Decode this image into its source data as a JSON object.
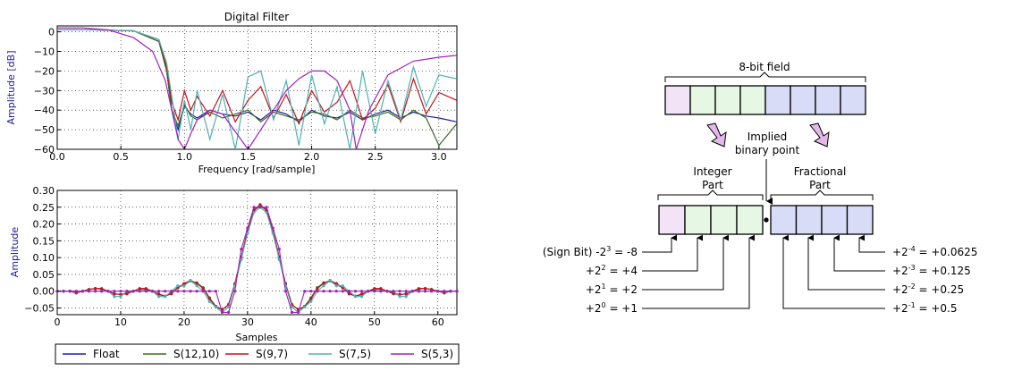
{
  "chart_data": [
    {
      "type": "line",
      "title": "Digital Filter",
      "xlabel": "Frequency [rad/sample]",
      "ylabel": "Amplitude [dB]",
      "xlim": [
        0,
        3.14159
      ],
      "ylim": [
        -60,
        3
      ],
      "xticks": [
        "0.0",
        "0.5",
        "1.0",
        "1.5",
        "2.0",
        "2.5",
        "3.0"
      ],
      "yticks": [
        "0",
        "−10",
        "−20",
        "−30",
        "−40",
        "−50",
        "−60"
      ],
      "grid": true,
      "series": [
        {
          "name": "Float",
          "color": "#1f1fa0",
          "x": [
            0,
            0.3,
            0.6,
            0.8,
            0.86,
            0.9,
            0.95,
            1.0,
            1.05,
            1.1,
            1.2,
            1.3,
            1.4,
            1.5,
            1.6,
            1.7,
            1.8,
            1.9,
            2.0,
            2.1,
            2.2,
            2.3,
            2.4,
            2.5,
            2.6,
            2.7,
            2.8,
            2.9,
            3.0,
            3.14
          ],
          "y": [
            1,
            1,
            0.5,
            -5,
            -20,
            -40,
            -50,
            -38,
            -42,
            -44,
            -40,
            -42,
            -43,
            -41,
            -45,
            -40,
            -42,
            -46,
            -40,
            -43,
            -44,
            -41,
            -45,
            -42,
            -40,
            -44,
            -41,
            -43,
            -44,
            -46
          ]
        },
        {
          "name": "S(12,10)",
          "color": "#3a6e1a",
          "x": [
            0,
            0.3,
            0.6,
            0.8,
            0.86,
            0.9,
            0.95,
            1.0,
            1.05,
            1.1,
            1.2,
            1.3,
            1.4,
            1.5,
            1.6,
            1.7,
            1.8,
            1.9,
            2.0,
            2.1,
            2.2,
            2.3,
            2.4,
            2.5,
            2.6,
            2.7,
            2.8,
            2.9,
            3.0,
            3.14
          ],
          "y": [
            1,
            1,
            0.5,
            -5,
            -20,
            -40,
            -48,
            -37,
            -43,
            -45,
            -41,
            -44,
            -42,
            -40,
            -46,
            -41,
            -43,
            -45,
            -41,
            -42,
            -45,
            -40,
            -44,
            -43,
            -41,
            -45,
            -40,
            -44,
            -58,
            -47
          ]
        },
        {
          "name": "S(9,7)",
          "color": "#c0141a",
          "x": [
            0,
            0.3,
            0.6,
            0.8,
            0.86,
            0.9,
            0.95,
            1.0,
            1.05,
            1.1,
            1.2,
            1.3,
            1.4,
            1.5,
            1.6,
            1.7,
            1.8,
            1.9,
            2.0,
            2.1,
            2.2,
            2.3,
            2.4,
            2.5,
            2.6,
            2.7,
            2.8,
            2.9,
            3.0,
            3.14
          ],
          "y": [
            1,
            1,
            0.5,
            -4,
            -18,
            -36,
            -45,
            -30,
            -40,
            -33,
            -43,
            -30,
            -46,
            -35,
            -28,
            -44,
            -32,
            -47,
            -30,
            -41,
            -36,
            -25,
            -45,
            -39,
            -27,
            -46,
            -24,
            -42,
            -31,
            -35
          ]
        },
        {
          "name": "S(7,5)",
          "color": "#4fb0b5",
          "x": [
            0,
            0.3,
            0.6,
            0.8,
            0.86,
            0.9,
            0.95,
            1.0,
            1.05,
            1.1,
            1.2,
            1.3,
            1.4,
            1.5,
            1.6,
            1.7,
            1.8,
            1.9,
            2.0,
            2.1,
            2.2,
            2.3,
            2.4,
            2.5,
            2.6,
            2.7,
            2.8,
            2.9,
            3.0,
            3.14
          ],
          "y": [
            1,
            1,
            0.5,
            -4,
            -16,
            -33,
            -55,
            -35,
            -50,
            -30,
            -55,
            -32,
            -60,
            -23,
            -20,
            -45,
            -25,
            -58,
            -22,
            -47,
            -28,
            -60,
            -20,
            -52,
            -25,
            -45,
            -18,
            -38,
            -22,
            -24
          ]
        },
        {
          "name": "S(5,3)",
          "color": "#a020c0",
          "x": [
            0,
            0.2,
            0.4,
            0.6,
            0.75,
            0.85,
            0.9,
            0.95,
            1.0,
            1.05,
            1.1,
            1.2,
            1.3,
            1.5,
            1.7,
            1.8,
            1.9,
            2.0,
            2.1,
            2.2,
            2.3,
            2.35,
            2.45,
            2.6,
            2.8,
            3.0,
            3.14
          ],
          "y": [
            2,
            2,
            1,
            -3,
            -10,
            -25,
            -40,
            -55,
            -60,
            -52,
            -45,
            -40,
            -42,
            -60,
            -40,
            -30,
            -24,
            -20,
            -20,
            -25,
            -40,
            -60,
            -40,
            -22,
            -15,
            -13,
            -12
          ]
        }
      ]
    },
    {
      "type": "line",
      "title": "",
      "xlabel": "Samples",
      "ylabel": "Amplitude",
      "xlim": [
        0,
        63
      ],
      "ylim": [
        -0.07,
        0.3
      ],
      "xticks": [
        "0",
        "10",
        "20",
        "30",
        "40",
        "50",
        "60"
      ],
      "yticks": [
        "0.30",
        "0.25",
        "0.20",
        "0.15",
        "0.10",
        "0.05",
        "0.00",
        "−0.05"
      ],
      "grid": true,
      "legend_position": "bottom",
      "legend": [
        "Float",
        "S(12,10)",
        "S(9,7)",
        "S(7,5)",
        "S(5,3)"
      ],
      "series": [
        {
          "name": "Float",
          "color": "#1f1fa0",
          "values": [
            0,
            0,
            0,
            -0.005,
            0,
            0.005,
            0.008,
            0.006,
            0,
            -0.008,
            -0.01,
            -0.005,
            0,
            0.006,
            0.005,
            0,
            -0.01,
            -0.015,
            -0.005,
            0.01,
            0.02,
            0.03,
            0.025,
            0.01,
            -0.02,
            -0.045,
            -0.055,
            -0.04,
            0.02,
            0.1,
            0.18,
            0.24,
            0.255,
            0.24,
            0.18,
            0.1,
            0.02,
            -0.04,
            -0.055,
            -0.045,
            -0.02,
            0.01,
            0.025,
            0.03,
            0.02,
            0.01,
            -0.005,
            -0.015,
            -0.01,
            0,
            0.005,
            0.006,
            0,
            -0.005,
            -0.01,
            -0.008,
            0,
            0.006,
            0.008,
            0.005,
            0,
            -0.005,
            0,
            0
          ]
        },
        {
          "name": "S(12,10)",
          "color": "#3a6e1a",
          "values": [
            0,
            0,
            0,
            -0.005,
            0,
            0.005,
            0.008,
            0.006,
            0,
            -0.008,
            -0.01,
            -0.005,
            0,
            0.006,
            0.005,
            0,
            -0.01,
            -0.015,
            -0.005,
            0.01,
            0.02,
            0.03,
            0.025,
            0.01,
            -0.02,
            -0.045,
            -0.055,
            -0.04,
            0.02,
            0.1,
            0.18,
            0.24,
            0.255,
            0.24,
            0.18,
            0.1,
            0.02,
            -0.04,
            -0.055,
            -0.045,
            -0.02,
            0.01,
            0.025,
            0.03,
            0.02,
            0.01,
            -0.005,
            -0.015,
            -0.01,
            0,
            0.005,
            0.006,
            0,
            -0.005,
            -0.01,
            -0.008,
            0,
            0.006,
            0.008,
            0.005,
            0,
            -0.005,
            0,
            0
          ]
        },
        {
          "name": "S(9,7)",
          "color": "#c0141a",
          "values": [
            0,
            0,
            0,
            -0.005,
            0,
            0.005,
            0.008,
            0.008,
            0,
            -0.008,
            -0.01,
            -0.008,
            0,
            0.008,
            0.008,
            0,
            -0.008,
            -0.015,
            -0.008,
            0.01,
            0.023,
            0.032,
            0.023,
            0.008,
            -0.023,
            -0.047,
            -0.055,
            -0.04,
            0.023,
            0.102,
            0.18,
            0.242,
            0.258,
            0.242,
            0.18,
            0.102,
            0.023,
            -0.04,
            -0.055,
            -0.047,
            -0.023,
            0.008,
            0.023,
            0.032,
            0.023,
            0.01,
            -0.008,
            -0.015,
            -0.008,
            0,
            0.008,
            0.008,
            0,
            -0.008,
            -0.01,
            -0.008,
            0,
            0.008,
            0.008,
            0.005,
            0,
            -0.005,
            0,
            0
          ]
        },
        {
          "name": "S(7,5)",
          "color": "#4fb0b5",
          "values": [
            0,
            0,
            0,
            0,
            0,
            0,
            0,
            0,
            0,
            -0.016,
            -0.016,
            0,
            0,
            0,
            0,
            0,
            -0.016,
            -0.016,
            0,
            0.016,
            0.016,
            0.031,
            0.016,
            0,
            -0.031,
            -0.047,
            -0.063,
            -0.047,
            0.016,
            0.094,
            0.172,
            0.234,
            0.25,
            0.234,
            0.172,
            0.094,
            0.016,
            -0.047,
            -0.063,
            -0.047,
            -0.031,
            0,
            0.016,
            0.031,
            0.016,
            0.016,
            0,
            -0.016,
            -0.016,
            0,
            0,
            0,
            0,
            0,
            -0.016,
            -0.016,
            0,
            0,
            0,
            0,
            0,
            0,
            0,
            0
          ]
        },
        {
          "name": "S(5,3)",
          "color": "#a020c0",
          "values": [
            0,
            0,
            0,
            0,
            0,
            0,
            0,
            0,
            0,
            0,
            0,
            0,
            0,
            0,
            0,
            0,
            0,
            0,
            0,
            0,
            0,
            0,
            0,
            0,
            0,
            0,
            -0.063,
            -0.063,
            0,
            0.125,
            0.188,
            0.25,
            0.25,
            0.25,
            0.188,
            0.125,
            0,
            -0.063,
            -0.063,
            0,
            0,
            0,
            0,
            0,
            0,
            0,
            0,
            0,
            0,
            0,
            0,
            0,
            0,
            0,
            0,
            0,
            0,
            0,
            0,
            0,
            0,
            0,
            0,
            0
          ]
        }
      ]
    }
  ],
  "diagram": {
    "field_label": "8-bit field",
    "implied_label_1": "Implied",
    "implied_label_2": "binary point",
    "integer_label_1": "Integer",
    "integer_label_2": "Part",
    "fraction_label_1": "Fractional",
    "fraction_label_2": "Part",
    "colors": {
      "sign": "#f3e3f6",
      "integer": "#e6f7e3",
      "fraction": "#d9dcf6",
      "arrow_fill": "#e3b8ea"
    },
    "left_labels": [
      {
        "prefix": "(Sign Bit) -2",
        "exp": "3",
        "suffix": " =  -8"
      },
      {
        "prefix": "+2",
        "exp": "2",
        "suffix": " = +4"
      },
      {
        "prefix": "+2",
        "exp": "1",
        "suffix": " = +2"
      },
      {
        "prefix": "+2",
        "exp": "0",
        "suffix": " = +1"
      }
    ],
    "right_labels": [
      {
        "prefix": "+2",
        "exp": "-4",
        "suffix": " =  +0.0625"
      },
      {
        "prefix": "+2",
        "exp": "-3",
        "suffix": " =  +0.125"
      },
      {
        "prefix": "+2",
        "exp": "-2",
        "suffix": " =  +0.25"
      },
      {
        "prefix": "+2",
        "exp": "-1",
        "suffix": " =  +0.5"
      }
    ]
  }
}
